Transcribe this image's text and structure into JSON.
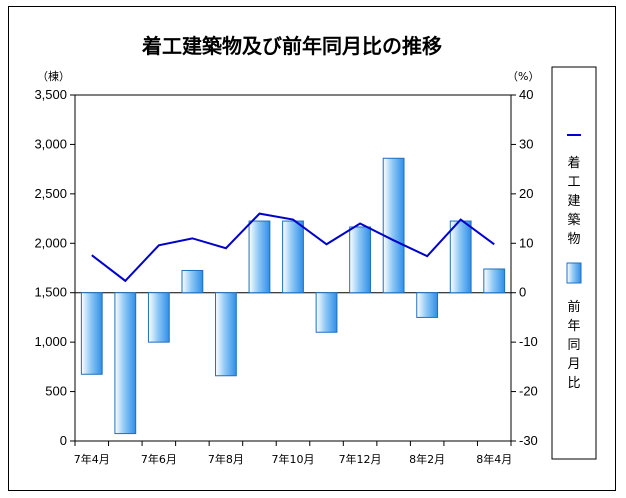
{
  "chart_data": {
    "type": "bar+line",
    "title": "着工建築物及び前年同月比の推移",
    "left_unit": "（棟）",
    "right_unit": "（%）",
    "categories": [
      "7年4月",
      "",
      "7年6月",
      "",
      "7年8月",
      "",
      "7年10月",
      "",
      "7年12月",
      "",
      "8年2月",
      "",
      "8年4月"
    ],
    "y_left": {
      "ticks": [
        "0",
        "500",
        "1,000",
        "1,500",
        "2,000",
        "2,500",
        "3,000",
        "3,500"
      ],
      "min": 0,
      "max": 3500
    },
    "y_right": {
      "ticks": [
        "-30",
        "-20",
        "-10",
        "0",
        "10",
        "20",
        "30",
        "40"
      ],
      "min": -30,
      "max": 40
    },
    "series": [
      {
        "name": "着工建築物",
        "type": "line",
        "axis": "left",
        "color": "#0000cc",
        "values": [
          1880,
          1620,
          1980,
          2050,
          1950,
          2300,
          2240,
          1990,
          2200,
          2030,
          1870,
          2240,
          1990
        ]
      },
      {
        "name": "前年同月比",
        "type": "bar",
        "axis": "right",
        "color": "#3b9cf0",
        "values": [
          -16.5,
          -28.5,
          -10,
          4.5,
          -16.8,
          14.5,
          14.5,
          -8,
          13.3,
          27.2,
          -5,
          14.5,
          4.8
        ]
      }
    ],
    "legend": {
      "position": "right",
      "line_label": "着工建築物",
      "bar_label": "前年同月比"
    },
    "grid": false
  }
}
